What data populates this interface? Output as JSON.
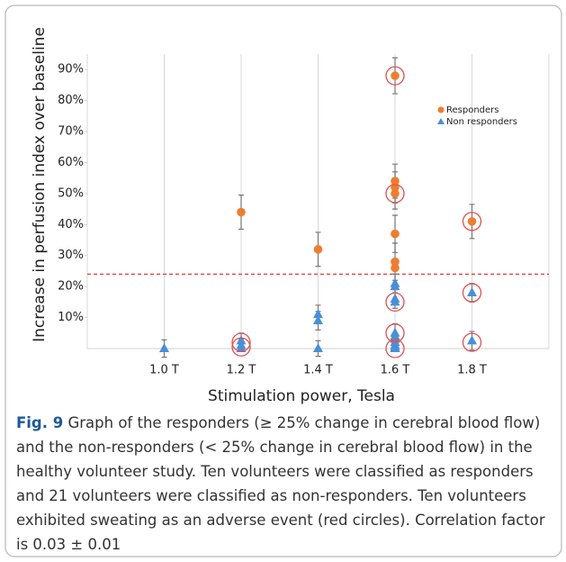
{
  "chart_data": {
    "type": "scatter",
    "ylabel": "Increase in perfusion index over baseline",
    "xlabel": "Stimulation power, Tesla",
    "xlim": [
      0.8,
      2.0
    ],
    "xticks": [
      {
        "value": 1.0,
        "label": "1.0 T"
      },
      {
        "value": 1.2,
        "label": "1.2 T"
      },
      {
        "value": 1.4,
        "label": "1.4 T"
      },
      {
        "value": 1.6,
        "label": "1.6 T"
      },
      {
        "value": 1.8,
        "label": "1.8 T"
      }
    ],
    "ylim": [
      0,
      95
    ],
    "yticks": [
      {
        "value": 10,
        "label": "10%"
      },
      {
        "value": 20,
        "label": "20%"
      },
      {
        "value": 30,
        "label": "30%"
      },
      {
        "value": 40,
        "label": "40%"
      },
      {
        "value": 50,
        "label": "50%"
      },
      {
        "value": 60,
        "label": "60%"
      },
      {
        "value": 70,
        "label": "70%"
      },
      {
        "value": 80,
        "label": "80%"
      },
      {
        "value": 90,
        "label": "90%"
      }
    ],
    "grid": "x",
    "threshold": 24,
    "threshold_color": "#e8413a",
    "legend": "upper right",
    "series": [
      {
        "name": "Responders",
        "color": "#ed7d31",
        "marker": "circle",
        "x": [
          1.2,
          1.4,
          1.6,
          1.6,
          1.6,
          1.6,
          1.6,
          1.6,
          1.6,
          1.8
        ],
        "values": [
          44,
          32,
          88,
          54,
          52,
          50,
          37,
          28,
          26,
          41
        ],
        "errors": [
          5.5,
          5.5,
          5.8,
          5.5,
          5,
          5,
          6,
          6,
          null,
          5.5
        ]
      },
      {
        "name": "Non responders",
        "color": "#4a8fd6",
        "marker": "triangle",
        "x": [
          1.0,
          1.2,
          1.2,
          1.2,
          1.4,
          1.4,
          1.4,
          1.6,
          1.6,
          1.6,
          1.6,
          1.6,
          1.6,
          1.6,
          1.6,
          1.6,
          1.6,
          1.6,
          1.6,
          1.8,
          1.8
        ],
        "values": [
          0,
          2.5,
          1,
          0,
          11,
          9,
          0,
          21,
          20,
          16,
          15,
          5,
          4,
          3,
          2,
          1,
          0.5,
          0,
          0,
          18,
          2.5
        ],
        "errors": [
          2.8,
          2.5,
          2,
          null,
          3,
          3,
          2.5,
          3,
          null,
          3,
          null,
          3,
          null,
          null,
          null,
          null,
          null,
          null,
          null,
          3,
          3
        ]
      }
    ],
    "circled": {
      "color": "#e05050",
      "x": [
        1.2,
        1.2,
        1.6,
        1.6,
        1.6,
        1.6,
        1.6,
        1.8,
        1.8,
        1.8
      ],
      "values": [
        2,
        0.5,
        88,
        50,
        15,
        5,
        0,
        41,
        18,
        2
      ]
    }
  },
  "caption": {
    "label": "Fig. 9",
    "text": "Graph of the responders (≥ 25% change in cerebral blood flow) and the non-responders (< 25% change in cerebral blood flow) in the healthy volunteer study. Ten volunteers were classified as responders and 21 volunteers were classified as non-responders. Ten volunteers exhibited sweating as an adverse event (red circles). Correlation factor is 0.03 ± 0.01"
  }
}
